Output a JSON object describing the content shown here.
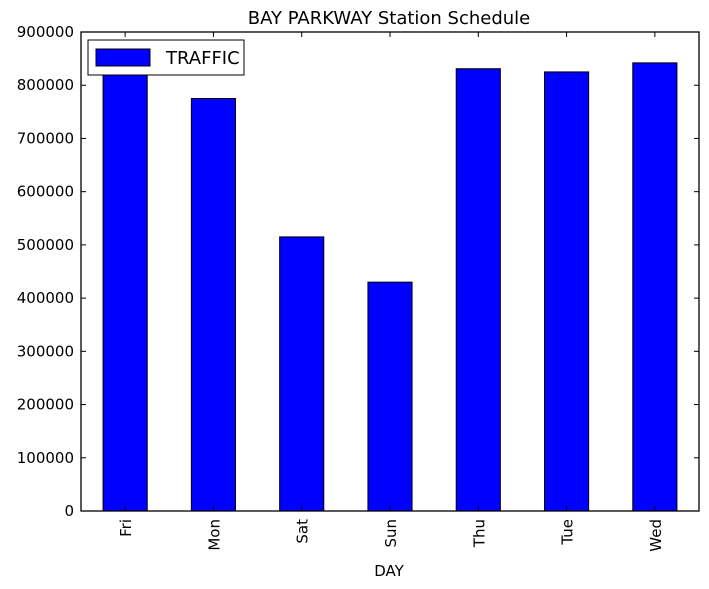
{
  "chart_data": {
    "type": "bar",
    "title": "BAY PARKWAY Station Schedule",
    "xlabel": "DAY",
    "ylabel": "",
    "categories": [
      "Fri",
      "Mon",
      "Sat",
      "Sun",
      "Thu",
      "Tue",
      "Wed"
    ],
    "series": [
      {
        "name": "TRAFFIC",
        "values": [
          820000,
          775000,
          515000,
          430000,
          831000,
          825000,
          842000
        ],
        "color": "#0000ff"
      }
    ],
    "ylim": [
      0,
      900000
    ],
    "yticks": [
      0,
      100000,
      200000,
      300000,
      400000,
      500000,
      600000,
      700000,
      800000,
      900000
    ],
    "legend_position": "top-left",
    "grid": false
  }
}
